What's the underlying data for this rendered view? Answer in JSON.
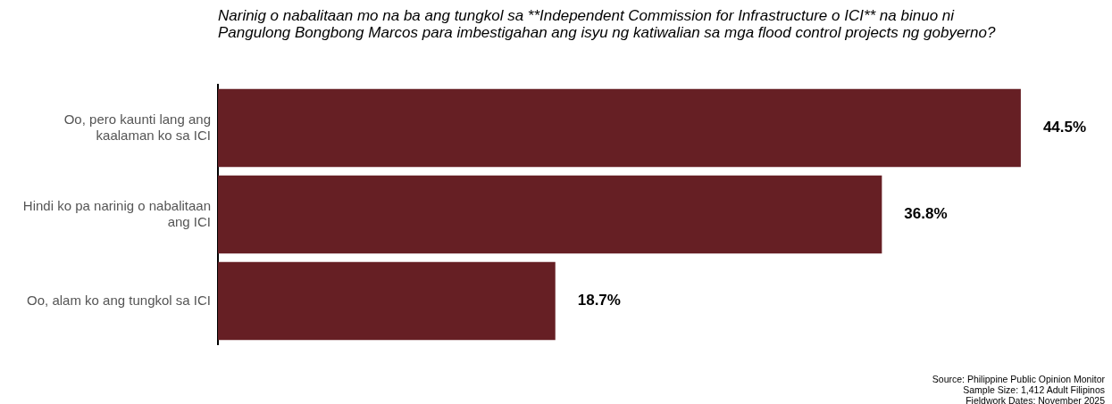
{
  "chart_data": {
    "type": "bar",
    "orientation": "horizontal",
    "subtitle": "Narinig o nabalitaan mo na ba ang tungkol sa **Independent Commission for Infrastructure o ICI** na binuo ni Pangulong Bongbong Marcos para imbestigahan ang isyu ng katiwalian sa mga flood control projects ng gobyerno?",
    "categories": [
      "Oo, pero kaunti lang ang kaalaman ko sa ICI",
      "Hindi ko pa narinig o nabalitaan ang ICI",
      "Oo, alam ko ang tungkol sa ICI"
    ],
    "values": [
      44.5,
      36.8,
      18.7
    ],
    "value_labels": [
      "44.5%",
      "36.8%",
      "18.7%"
    ],
    "color": "#661f24",
    "tick_labels": "y",
    "grid": false,
    "legend": false,
    "annotations": [
      "Source: Philippine Public Opinion Monitor",
      "Sample Size: 1,412 Adult Filipinos",
      "Fieldwork Dates: November 2025"
    ]
  }
}
